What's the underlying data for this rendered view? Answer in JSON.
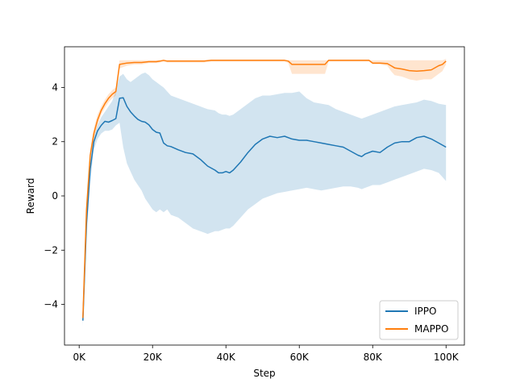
{
  "chart_data": {
    "type": "line",
    "title": "",
    "xlabel": "Step",
    "ylabel": "Reward",
    "xlim": [
      -4000,
      105000
    ],
    "ylim": [
      -5.5,
      5.5
    ],
    "x_ticks": [
      0,
      20000,
      40000,
      60000,
      80000,
      100000
    ],
    "x_tick_labels": [
      "0K",
      "20K",
      "40K",
      "60K",
      "80K",
      "100K"
    ],
    "y_ticks": [
      -4,
      -2,
      0,
      2,
      4
    ],
    "y_tick_labels": [
      "−4",
      "−2",
      "0",
      "2",
      "4"
    ],
    "grid": false,
    "legend_position": "lower-right",
    "series": [
      {
        "name": "IPPO",
        "color": "#1f77b4",
        "band_color": "#1f77b4",
        "x": [
          1000,
          2000,
          3000,
          4000,
          5000,
          6000,
          7000,
          8000,
          9000,
          10000,
          11000,
          12000,
          13000,
          14000,
          15000,
          16000,
          17000,
          18000,
          19000,
          20000,
          21000,
          22000,
          23000,
          24000,
          25000,
          27000,
          29000,
          31000,
          33000,
          35000,
          37000,
          38000,
          39000,
          40000,
          41000,
          42000,
          44000,
          46000,
          48000,
          50000,
          52000,
          54000,
          56000,
          58000,
          60000,
          62000,
          64000,
          66000,
          68000,
          70000,
          72000,
          74000,
          76000,
          77000,
          78000,
          80000,
          82000,
          84000,
          86000,
          88000,
          90000,
          92000,
          94000,
          96000,
          98000,
          100000
        ],
        "mean": [
          -4.6,
          -1.0,
          1.0,
          2.0,
          2.4,
          2.6,
          2.75,
          2.72,
          2.78,
          2.85,
          3.6,
          3.62,
          3.3,
          3.1,
          2.95,
          2.82,
          2.75,
          2.72,
          2.62,
          2.45,
          2.35,
          2.32,
          1.95,
          1.85,
          1.82,
          1.7,
          1.6,
          1.55,
          1.35,
          1.1,
          0.95,
          0.85,
          0.85,
          0.9,
          0.85,
          0.95,
          1.25,
          1.6,
          1.9,
          2.1,
          2.2,
          2.15,
          2.2,
          2.1,
          2.05,
          2.05,
          2.0,
          1.95,
          1.9,
          1.85,
          1.8,
          1.65,
          1.5,
          1.45,
          1.55,
          1.65,
          1.6,
          1.8,
          1.95,
          2.0,
          2.0,
          2.15,
          2.2,
          2.1,
          1.95,
          1.8
        ],
        "upper": [
          -4.6,
          -0.5,
          1.3,
          2.2,
          2.6,
          2.9,
          3.1,
          3.3,
          3.5,
          3.9,
          4.4,
          4.5,
          4.3,
          4.2,
          4.3,
          4.4,
          4.5,
          4.55,
          4.45,
          4.3,
          4.2,
          4.1,
          4.0,
          3.85,
          3.7,
          3.6,
          3.5,
          3.4,
          3.3,
          3.2,
          3.15,
          3.05,
          3.0,
          3.0,
          2.95,
          3.0,
          3.2,
          3.4,
          3.6,
          3.7,
          3.7,
          3.75,
          3.8,
          3.8,
          3.85,
          3.6,
          3.45,
          3.4,
          3.35,
          3.2,
          3.1,
          3.0,
          2.9,
          2.85,
          2.9,
          3.0,
          3.1,
          3.2,
          3.3,
          3.35,
          3.4,
          3.45,
          3.55,
          3.5,
          3.4,
          3.35
        ],
        "lower": [
          -4.8,
          -1.6,
          0.5,
          1.7,
          2.1,
          2.3,
          2.4,
          2.4,
          2.45,
          2.6,
          2.7,
          1.8,
          1.2,
          0.9,
          0.6,
          0.4,
          0.2,
          -0.1,
          -0.3,
          -0.5,
          -0.6,
          -0.5,
          -0.6,
          -0.5,
          -0.7,
          -0.8,
          -1.0,
          -1.2,
          -1.3,
          -1.4,
          -1.3,
          -1.3,
          -1.25,
          -1.2,
          -1.2,
          -1.1,
          -0.8,
          -0.5,
          -0.3,
          -0.1,
          0.0,
          0.1,
          0.15,
          0.2,
          0.25,
          0.3,
          0.25,
          0.2,
          0.25,
          0.3,
          0.35,
          0.35,
          0.3,
          0.25,
          0.3,
          0.4,
          0.4,
          0.5,
          0.6,
          0.7,
          0.8,
          0.9,
          1.0,
          0.95,
          0.85,
          0.55
        ]
      },
      {
        "name": "MAPPO",
        "color": "#ff7f0e",
        "band_color": "#ff7f0e",
        "x": [
          1000,
          2000,
          3000,
          4000,
          5000,
          6000,
          7000,
          8000,
          9000,
          10000,
          11000,
          13000,
          15000,
          17000,
          19000,
          21000,
          22000,
          23000,
          24000,
          26000,
          30000,
          34000,
          36000,
          40000,
          44000,
          48000,
          52000,
          56000,
          57000,
          58000,
          60000,
          62000,
          64000,
          66000,
          67000,
          68000,
          72000,
          76000,
          79000,
          80000,
          82000,
          84000,
          85000,
          86000,
          88000,
          90000,
          92000,
          94000,
          96000,
          98000,
          99000,
          100000
        ],
        "mean": [
          -4.5,
          -0.5,
          1.5,
          2.3,
          2.8,
          3.15,
          3.4,
          3.6,
          3.75,
          3.85,
          4.85,
          4.9,
          4.92,
          4.92,
          4.95,
          4.95,
          4.97,
          5.0,
          4.97,
          4.97,
          4.97,
          4.97,
          5.0,
          5.0,
          5.0,
          5.0,
          5.0,
          5.0,
          4.97,
          4.85,
          4.85,
          4.85,
          4.85,
          4.85,
          4.85,
          5.0,
          5.0,
          5.0,
          5.0,
          4.9,
          4.9,
          4.88,
          4.8,
          4.72,
          4.68,
          4.62,
          4.6,
          4.62,
          4.65,
          4.8,
          4.85,
          4.97
        ],
        "upper": [
          -4.4,
          -0.3,
          1.7,
          2.5,
          3.0,
          3.3,
          3.55,
          3.75,
          3.9,
          4.0,
          5.0,
          5.0,
          5.0,
          5.0,
          5.0,
          5.0,
          5.0,
          5.0,
          5.0,
          5.0,
          5.0,
          5.0,
          5.0,
          5.0,
          5.0,
          5.0,
          5.0,
          5.0,
          5.0,
          5.0,
          5.0,
          5.0,
          5.0,
          5.0,
          5.0,
          5.0,
          5.0,
          5.0,
          5.0,
          5.0,
          5.0,
          5.0,
          5.0,
          5.0,
          5.0,
          5.0,
          5.0,
          5.0,
          5.0,
          5.0,
          5.0,
          5.05
        ],
        "lower": [
          -4.6,
          -0.8,
          1.3,
          2.1,
          2.6,
          3.0,
          3.25,
          3.45,
          3.6,
          3.7,
          4.7,
          4.8,
          4.85,
          4.85,
          4.9,
          4.9,
          4.92,
          4.95,
          4.92,
          4.92,
          4.92,
          4.92,
          4.95,
          4.95,
          4.95,
          4.95,
          4.95,
          4.95,
          4.9,
          4.5,
          4.5,
          4.5,
          4.5,
          4.5,
          4.5,
          4.95,
          4.95,
          4.95,
          4.95,
          4.85,
          4.85,
          4.8,
          4.6,
          4.45,
          4.4,
          4.3,
          4.25,
          4.3,
          4.3,
          4.5,
          4.6,
          4.85
        ]
      }
    ]
  }
}
